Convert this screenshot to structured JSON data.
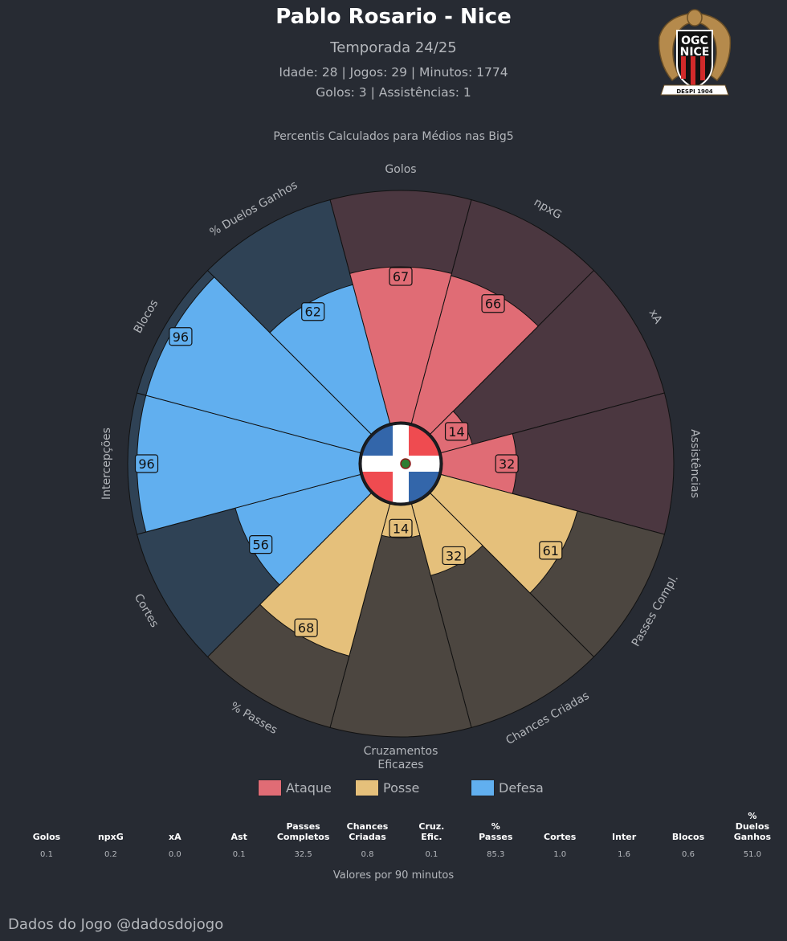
{
  "header": {
    "title": "Pablo Rosario - Nice",
    "season": "Temporada 24/25",
    "info_line1": "Idade: 28 | Jogos: 29 | Minutos: 1774",
    "info_line2": "Golos: 3 | Assistências: 1"
  },
  "crest": {
    "line1": "OGC",
    "line2": "NICE",
    "ribbon": "DESPI 1904"
  },
  "chart_subtitle": "Percentis Calculados para Médios nas Big5",
  "colors": {
    "background": "#272b33",
    "ataque": "#e06c75",
    "ataque_bg": "#4b3740",
    "posse": "#e5c07b",
    "posse_bg": "#4c4640",
    "defesa": "#61afef",
    "defesa_bg": "#2f4255"
  },
  "chart_data": {
    "type": "polar-bar",
    "rlim": [
      0,
      100
    ],
    "categories": [
      "Golos",
      "npxG",
      "xA",
      "Assistências",
      "Passes Compl.",
      "Chances Criadas",
      "Cruzamentos\nEficazes",
      "% Passes",
      "Cortes",
      "Intercepções",
      "Blocos",
      "% Duelos Ganhos"
    ],
    "values": [
      67,
      66,
      14,
      32,
      61,
      32,
      14,
      68,
      56,
      96,
      96,
      62
    ],
    "groups": [
      "Ataque",
      "Ataque",
      "Ataque",
      "Ataque",
      "Posse",
      "Posse",
      "Posse",
      "Posse",
      "Defesa",
      "Defesa",
      "Defesa",
      "Defesa"
    ],
    "legend": [
      "Ataque",
      "Posse",
      "Defesa"
    ],
    "legend_position": "bottom-center"
  },
  "stats_table": {
    "headers": [
      "Golos",
      "npxG",
      "xA",
      "Ast",
      "Passes\nCompletos",
      "Chances\nCriadas",
      "Cruz.\nEfic.",
      "%\nPasses",
      "Cortes",
      "Inter",
      "Blocos",
      "%\nDuelos\nGanhos"
    ],
    "values": [
      "0.1",
      "0.2",
      "0.0",
      "0.1",
      "32.5",
      "0.8",
      "0.1",
      "85.3",
      "1.0",
      "1.6",
      "0.6",
      "51.0"
    ],
    "caption": "Valores por 90 minutos"
  },
  "footer": "Dados do Jogo @dadosdojogo"
}
